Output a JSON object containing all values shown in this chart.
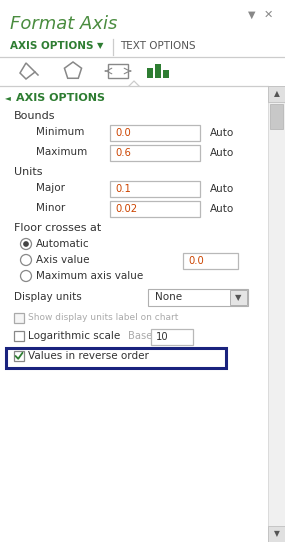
{
  "title": "Format Axis",
  "title_color": "#4a8c3f",
  "bg_color": "#ffffff",
  "tab1": "AXIS OPTIONS",
  "tab2": "TEXT OPTIONS",
  "section_title": "AXIS OPTIONS",
  "green_dark": "#2e7d32",
  "input_value_color": "#cc4400",
  "highlight_color": "#1a237e",
  "light_gray": "#aaaaaa",
  "med_gray": "#666666",
  "scrollbar_bg": "#f0f0f0",
  "scrollbar_btn": "#d8d8d8",
  "fields": [
    {
      "label": "Minimum",
      "value": "0.0"
    },
    {
      "label": "Maximum",
      "value": "0.6"
    },
    {
      "label": "Major",
      "value": "0.1"
    },
    {
      "label": "Minor",
      "value": "0.02"
    }
  ],
  "radio_options": [
    "Automatic",
    "Axis value",
    "Maximum axis value"
  ],
  "radio_checked": 0,
  "axis_value_box": "0.0",
  "display_units_value": "None",
  "checkbox2_base_value": "10"
}
